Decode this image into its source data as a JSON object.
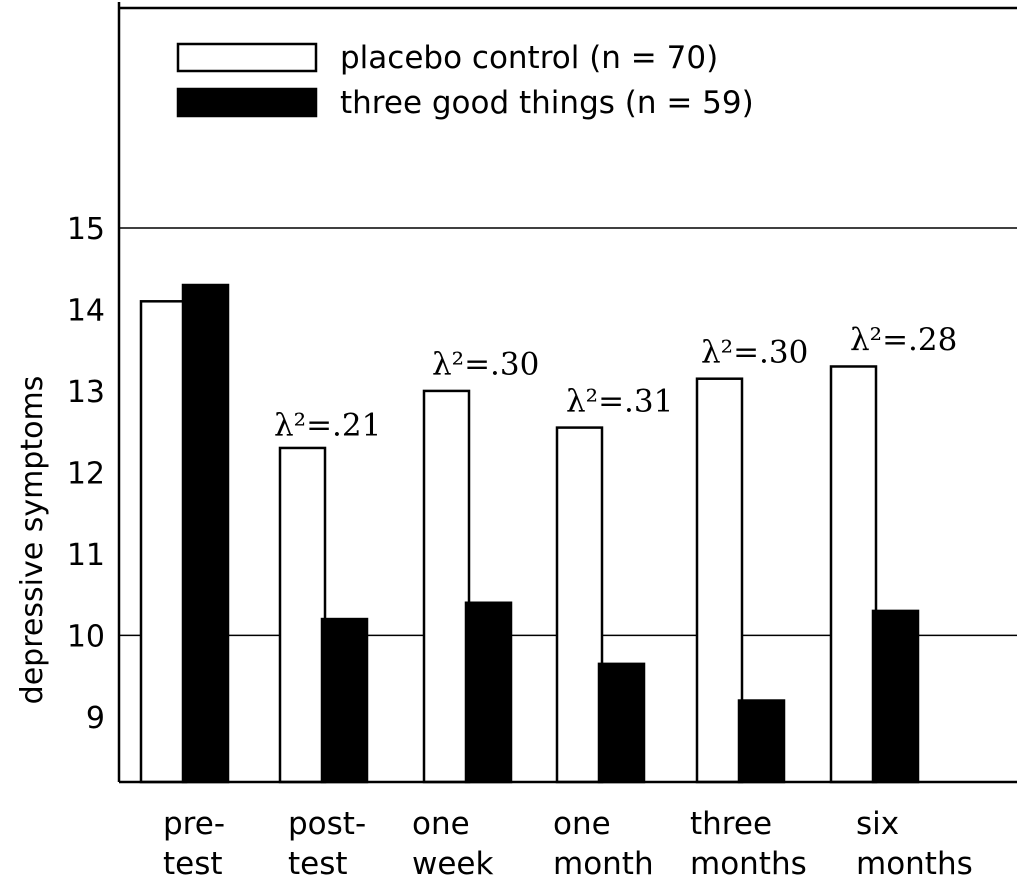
{
  "chart_data": {
    "type": "bar",
    "ylabel": "depressive symptoms",
    "ylim": [
      8.2,
      17.7
    ],
    "yticks": [
      9,
      10,
      11,
      12,
      13,
      14,
      15
    ],
    "gridlines": [
      10,
      15
    ],
    "legend_position": "top-left",
    "categories": [
      [
        "pre-",
        "test"
      ],
      [
        "post-",
        "test"
      ],
      [
        "one",
        "week"
      ],
      [
        "one",
        "month"
      ],
      [
        "three",
        "months"
      ],
      [
        "six",
        "months"
      ]
    ],
    "series": [
      {
        "name": "placebo control (n = 70)",
        "fill": "#ffffff",
        "values": [
          14.1,
          12.3,
          13.0,
          12.55,
          13.15,
          13.3
        ]
      },
      {
        "name": "three good things (n = 59)",
        "fill": "#000000",
        "values": [
          14.3,
          10.2,
          10.4,
          9.65,
          9.2,
          10.3
        ]
      }
    ],
    "annotations": [
      {
        "category": 1,
        "text": "λ²=.21",
        "value": 12.45
      },
      {
        "category": 2,
        "text": "λ²=.30",
        "value": 13.2
      },
      {
        "category": 3,
        "text": "λ²=.31",
        "value": 12.75
      },
      {
        "category": 4,
        "text": "λ²=.30",
        "value": 13.35
      },
      {
        "category": 5,
        "text": "λ²=.28",
        "value": 13.5
      }
    ]
  }
}
